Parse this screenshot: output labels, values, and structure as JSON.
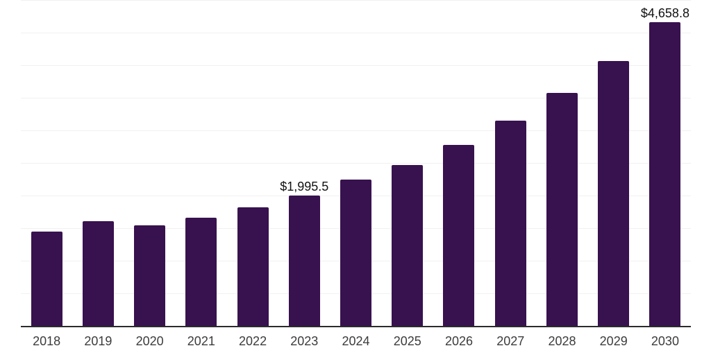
{
  "chart_data": {
    "type": "bar",
    "title": "",
    "xlabel": "",
    "ylabel": "",
    "legend": "none",
    "grid": "horizontal",
    "categories": [
      "2018",
      "2019",
      "2020",
      "2021",
      "2022",
      "2023",
      "2024",
      "2025",
      "2026",
      "2027",
      "2028",
      "2029",
      "2030"
    ],
    "values": [
      1445,
      1610,
      1540,
      1665,
      1815,
      1995.5,
      2240,
      2470,
      2780,
      3145,
      3575,
      4065,
      4658.8
    ],
    "data_labels": {
      "2023": "$1,995.5",
      "2030": "$4,658.8"
    },
    "ylim": [
      0,
      5000
    ],
    "gridline_step": 500,
    "colors": {
      "bar": "#38114F",
      "grid": "#f1f1f1",
      "axis": "#2b2b2b",
      "tick_label": "#3c3c3c",
      "value_label": "#111111",
      "background": "#ffffff"
    }
  }
}
